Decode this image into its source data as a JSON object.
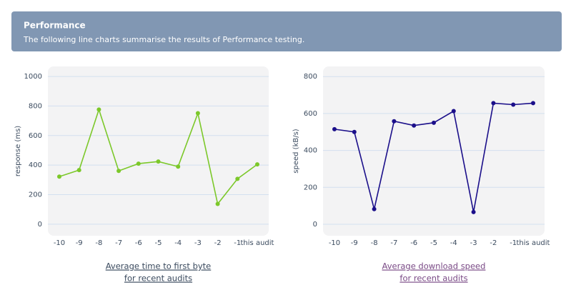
{
  "header": {
    "title": "Performance",
    "subtitle": "The following line charts summarise the results of Performance testing."
  },
  "chart_data": [
    {
      "type": "line",
      "caption": [
        "Average time to first byte",
        "for recent audits"
      ],
      "y_label": "response (ms)",
      "categories": [
        "-10",
        "-9",
        "-8",
        "-7",
        "-6",
        "-5",
        "-4",
        "-3",
        "-2",
        "-1",
        "this audit"
      ],
      "series": [
        {
          "name": "response",
          "color": "#7cc82a",
          "values": [
            322,
            366,
            776,
            361,
            410,
            424,
            390,
            751,
            137,
            307,
            405
          ]
        }
      ],
      "ylim": [
        -78,
        1068
      ],
      "yticks": [
        0,
        200,
        400,
        600,
        800,
        1000
      ],
      "grid": true,
      "caption_color": "#3a4a5e"
    },
    {
      "type": "line",
      "caption": [
        "Average download speed",
        "for recent audits"
      ],
      "y_label": "speed (kB/s)",
      "categories": [
        "-10",
        "-9",
        "-8",
        "-7",
        "-6",
        "-5",
        "-4",
        "-3",
        "-2",
        "-1",
        "this audit"
      ],
      "series": [
        {
          "name": "speed",
          "color": "#1b0f8a",
          "values": [
            515,
            500,
            82,
            558,
            535,
            550,
            613,
            66,
            656,
            648,
            656
          ]
        }
      ],
      "ylim": [
        -62,
        855
      ],
      "yticks": [
        0,
        200,
        400,
        600,
        800
      ],
      "grid": true,
      "caption_color": "#7a4a86"
    }
  ]
}
